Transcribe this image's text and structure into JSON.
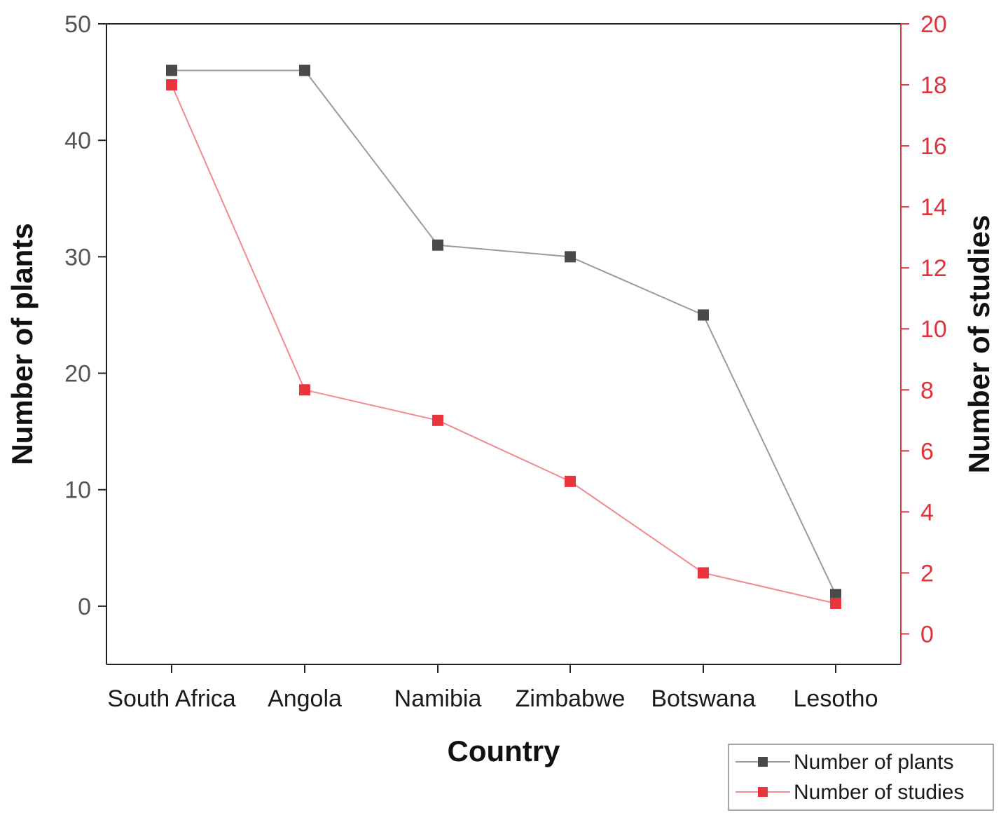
{
  "chart_data": {
    "type": "line",
    "categories": [
      "South Africa",
      "Angola",
      "Namibia",
      "Zimbabwe",
      "Botswana",
      "Lesotho"
    ],
    "xlabel": "Country",
    "ylabel_left": "Number of plants",
    "ylabel_right": "Number of studies",
    "y_left": {
      "range": [
        -5,
        50
      ],
      "ticks": [
        0,
        10,
        20,
        30,
        40,
        50
      ],
      "color": "#555555"
    },
    "y_right": {
      "range": [
        -1,
        20
      ],
      "ticks": [
        0,
        2,
        4,
        6,
        8,
        10,
        12,
        14,
        16,
        18,
        20
      ],
      "color": "#e0323a"
    },
    "grid": false,
    "legend_position": "bottom-right",
    "series": [
      {
        "name": "Number of plants",
        "axis": "left",
        "values": [
          46,
          46,
          31,
          30,
          25,
          1
        ],
        "marker_color": "#4a4a4a",
        "line_color": "#9a9a9a"
      },
      {
        "name": "Number of studies",
        "axis": "right",
        "values": [
          18,
          8,
          7,
          5,
          2,
          1
        ],
        "marker_color": "#e8343c",
        "line_color": "#f08a8f"
      }
    ]
  }
}
